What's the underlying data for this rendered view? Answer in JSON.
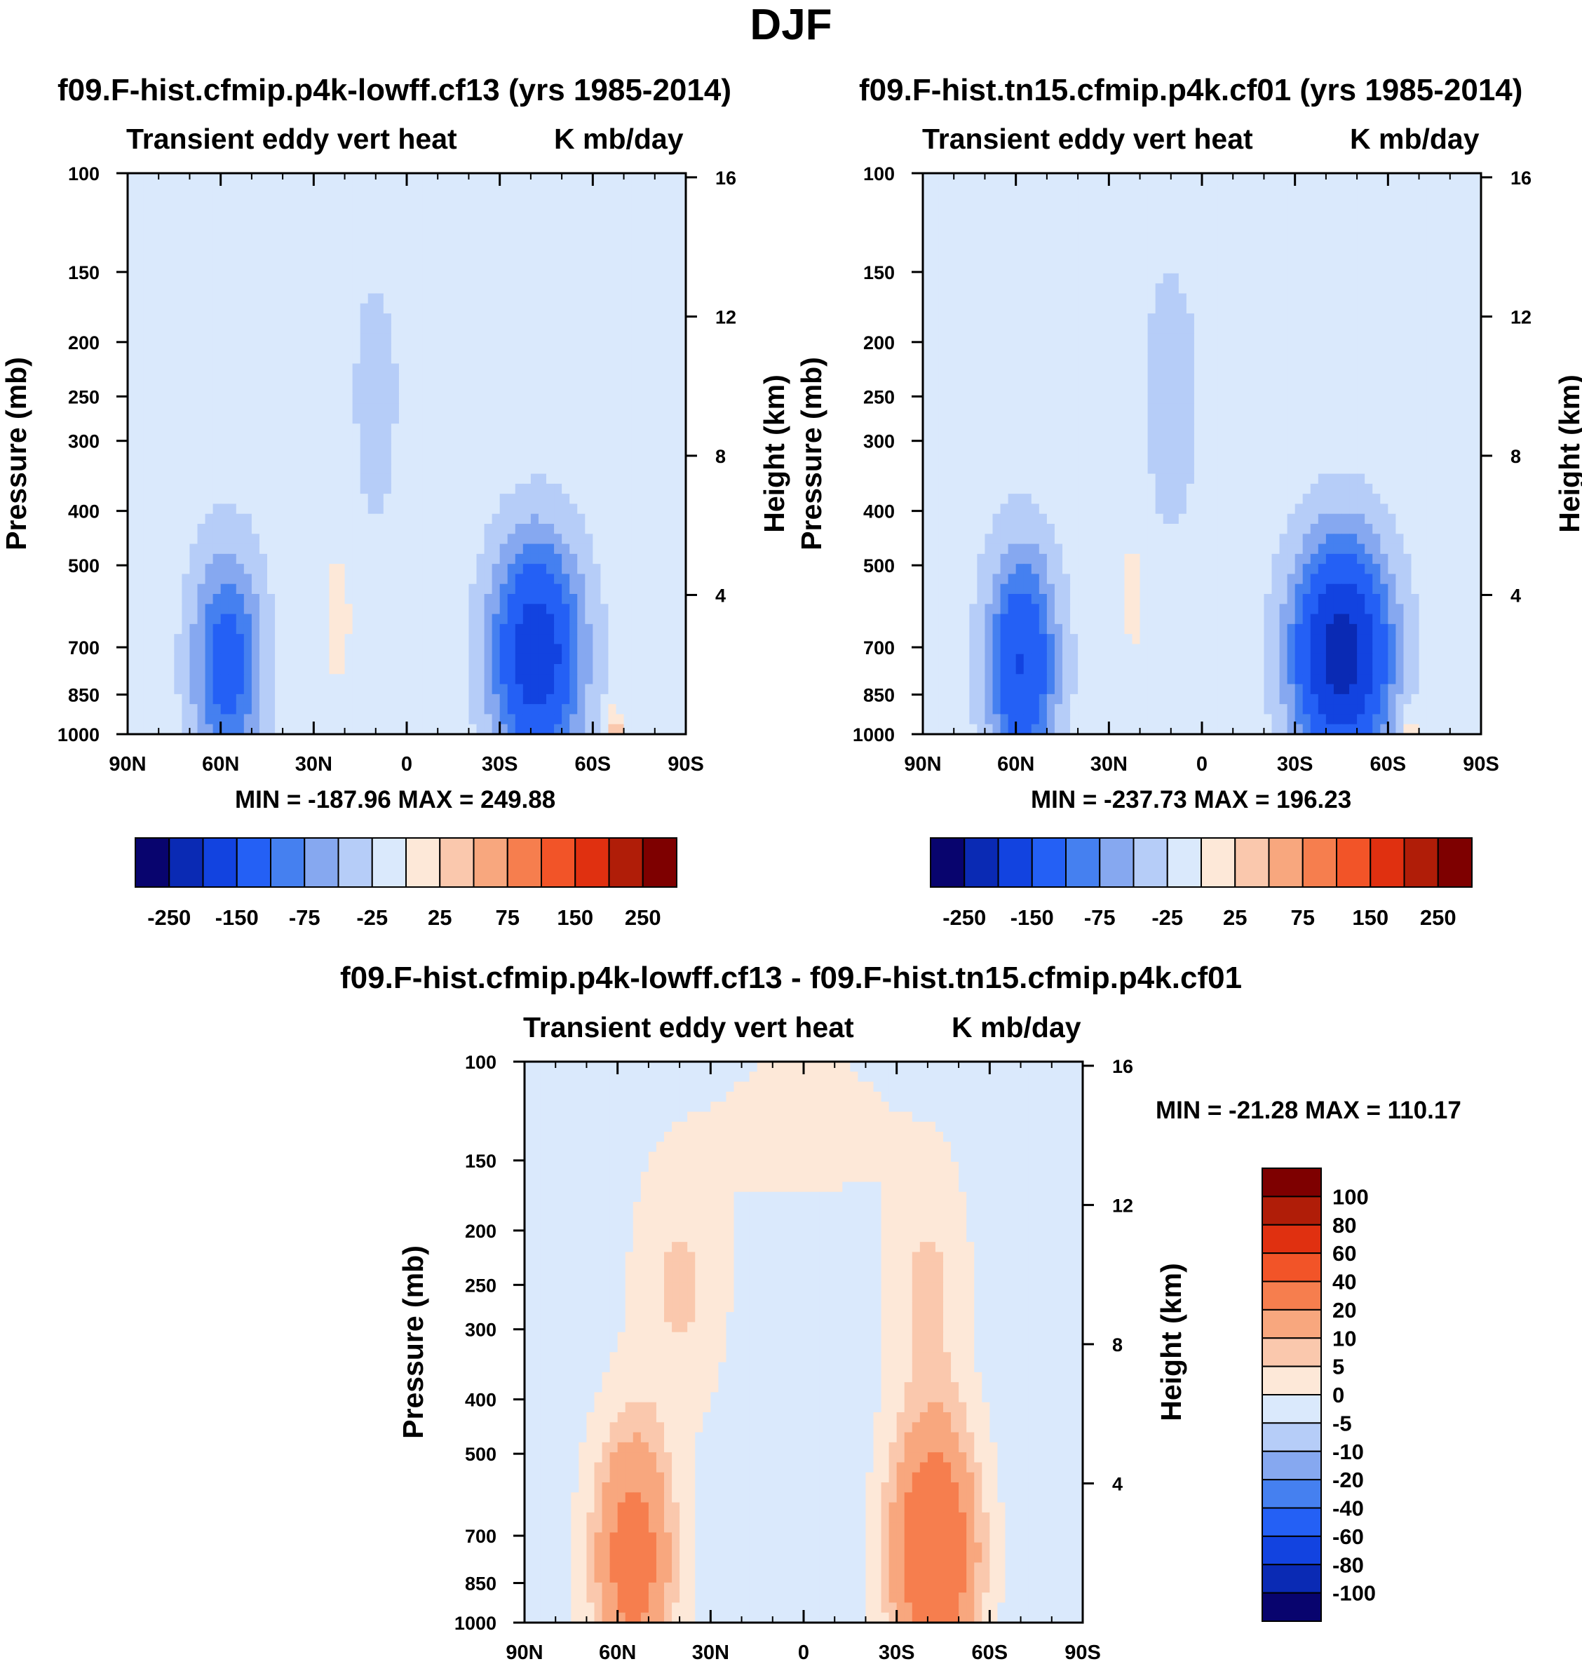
{
  "figure": {
    "title": "DJF"
  },
  "colors": {
    "abs_levels": [
      "#08046e",
      "#0a2ab4",
      "#1243e0",
      "#2460f5",
      "#4580f0",
      "#86a8f0",
      "#b6cdf8",
      "#dae9fc",
      "#fde8d8",
      "#fac8ad",
      "#f8a77e",
      "#f67e4e",
      "#f25428",
      "#e03010",
      "#b01d08",
      "#7e0000"
    ],
    "diff_levels": [
      "#08046e",
      "#0a2ab4",
      "#1243e0",
      "#2460f5",
      "#4580f0",
      "#86a8f0",
      "#b6cdf8",
      "#dae9fc",
      "#fde8d8",
      "#fac8ad",
      "#f8a77e",
      "#f67e4e",
      "#f25428",
      "#e03010",
      "#b01d08",
      "#7e0000"
    ]
  },
  "chart_data": [
    {
      "type": "heatmap",
      "title": "f09.F-hist.cfmip.p4k-lowff.cf13 (yrs 1985-2014)",
      "subtitle_left": "Transient eddy vert heat",
      "subtitle_right": "K mb/day",
      "ylabel": "Pressure (mb)",
      "ylabel_right": "Height (km)",
      "x_ticks": [
        "90N",
        "60N",
        "30N",
        "0",
        "30S",
        "60S",
        "90S"
      ],
      "y_ticks": [
        100,
        150,
        200,
        250,
        300,
        400,
        500,
        700,
        850,
        1000
      ],
      "y2_ticks": [
        16,
        12,
        8,
        4
      ],
      "log_y": true,
      "ylim": [
        1000,
        100
      ],
      "stats": "MIN = -187.96   MAX = 249.88",
      "colorbar": {
        "orientation": "horizontal",
        "labels": [
          "-250",
          "-150",
          "-75",
          "-25",
          "25",
          "75",
          "150",
          "250"
        ]
      },
      "features": [
        {
          "lat": -42,
          "p": 720,
          "value": -175,
          "wlat": 14,
          "wlnp": 0.45
        },
        {
          "lat": 58,
          "p": 750,
          "value": -110,
          "wlat": 11,
          "wlnp": 0.45
        },
        {
          "lat": 22,
          "p": 620,
          "value": 20,
          "wlat": 5,
          "wlnp": 0.35
        },
        {
          "lat": 10,
          "p": 250,
          "value": -25,
          "wlat": 8,
          "wlnp": 0.6
        },
        {
          "lat": -67,
          "p": 980,
          "value": 60,
          "wlat": 3,
          "wlnp": 0.08
        },
        {
          "lat": -20,
          "p": 130,
          "value": 12,
          "wlat": 25,
          "wlnp": 0.25
        },
        {
          "lat": 50,
          "p": 130,
          "value": 12,
          "wlat": 15,
          "wlnp": 0.25
        }
      ]
    },
    {
      "type": "heatmap",
      "title": "f09.F-hist.tn15.cfmip.p4k.cf01 (yrs 1985-2014)",
      "subtitle_left": "Transient eddy vert heat",
      "subtitle_right": "K mb/day",
      "ylabel": "Pressure (mb)",
      "ylabel_right": "Height (km)",
      "x_ticks": [
        "90N",
        "60N",
        "30N",
        "0",
        "30S",
        "60S",
        "90S"
      ],
      "y_ticks": [
        100,
        150,
        200,
        250,
        300,
        400,
        500,
        700,
        850,
        1000
      ],
      "y2_ticks": [
        16,
        12,
        8,
        4
      ],
      "log_y": true,
      "ylim": [
        1000,
        100
      ],
      "stats": "MIN = -237.73   MAX = 196.23",
      "colorbar": {
        "orientation": "horizontal",
        "labels": [
          "-250",
          "-150",
          "-75",
          "-25",
          "25",
          "75",
          "150",
          "250"
        ]
      },
      "features": [
        {
          "lat": -45,
          "p": 720,
          "value": -215,
          "wlat": 15,
          "wlnp": 0.45
        },
        {
          "lat": 58,
          "p": 750,
          "value": -140,
          "wlat": 11,
          "wlnp": 0.45
        },
        {
          "lat": 22,
          "p": 560,
          "value": 18,
          "wlat": 5,
          "wlnp": 0.35
        },
        {
          "lat": 10,
          "p": 250,
          "value": -30,
          "wlat": 9,
          "wlnp": 0.6
        },
        {
          "lat": -67,
          "p": 980,
          "value": 40,
          "wlat": 3,
          "wlnp": 0.08
        },
        {
          "lat": -20,
          "p": 130,
          "value": 10,
          "wlat": 25,
          "wlnp": 0.25
        },
        {
          "lat": 50,
          "p": 130,
          "value": 10,
          "wlat": 15,
          "wlnp": 0.25
        }
      ]
    },
    {
      "type": "heatmap",
      "title": "f09.F-hist.cfmip.p4k-lowff.cf13 - f09.F-hist.tn15.cfmip.p4k.cf01",
      "subtitle_left": "Transient eddy vert heat",
      "subtitle_right": "K mb/day",
      "ylabel": "Pressure (mb)",
      "ylabel_right": "Height (km)",
      "x_ticks": [
        "90N",
        "60N",
        "30N",
        "0",
        "30S",
        "60S",
        "90S"
      ],
      "y_ticks": [
        100,
        150,
        200,
        250,
        300,
        400,
        500,
        700,
        850,
        1000
      ],
      "y2_ticks": [
        16,
        12,
        8,
        4
      ],
      "log_y": true,
      "ylim": [
        1000,
        100
      ],
      "stats": "MIN = -21.28   MAX = 110.17",
      "colorbar": {
        "orientation": "vertical",
        "labels": [
          "100",
          "80",
          "60",
          "40",
          "20",
          "10",
          "5",
          "0",
          "-5",
          "-10",
          "-20",
          "-40",
          "-60",
          "-80",
          "-100"
        ]
      },
      "features": [
        {
          "lat": -42,
          "p": 750,
          "value": 40,
          "wlat": 13,
          "wlnp": 0.5
        },
        {
          "lat": 55,
          "p": 760,
          "value": 30,
          "wlat": 12,
          "wlnp": 0.5
        },
        {
          "lat": -40,
          "p": 250,
          "value": 8,
          "wlat": 12,
          "wlnp": 0.5
        },
        {
          "lat": 40,
          "p": 250,
          "value": 8,
          "wlat": 14,
          "wlnp": 0.5
        },
        {
          "lat": 0,
          "p": 130,
          "value": 4,
          "wlat": 30,
          "wlnp": 0.35
        },
        {
          "lat": 10,
          "p": 600,
          "value": -3,
          "wlat": 8,
          "wlnp": 0.5
        }
      ]
    }
  ]
}
